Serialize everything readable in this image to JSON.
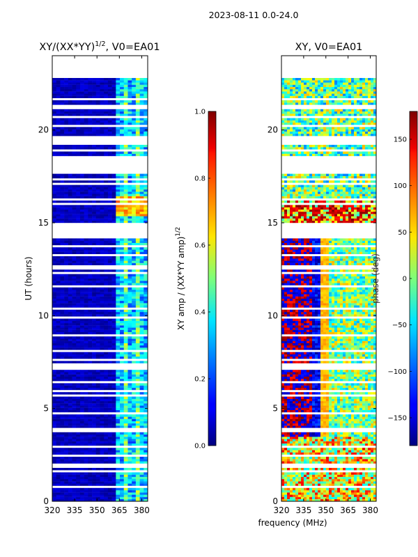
{
  "suptitle": "2023-08-11 0.0-24.0",
  "shared_xlabel": "frequency (MHz)",
  "chart_data": [
    {
      "type": "heatmap",
      "title": "XY/(XX*YY)^1/2, V0=EA01",
      "title_main": "XY/(XX*YY)",
      "title_sup": "1/2",
      "title_tail": ", V0=EA01",
      "xlabel": "frequency (MHz)",
      "ylabel": "UT (hours)",
      "xlim": [
        320,
        384
      ],
      "ylim": [
        0,
        24
      ],
      "xticks": [
        320,
        335,
        350,
        365,
        380
      ],
      "yticks": [
        0,
        5,
        10,
        15,
        20
      ],
      "colorbar": {
        "label": "XY amp / (XX*YY amp)^1/2",
        "label_main": "XY amp / (XX*YY amp)",
        "label_sup": "1/2",
        "range": [
          0.0,
          1.0
        ],
        "ticks": [
          "0.0",
          "0.2",
          "0.4",
          "0.6",
          "0.8",
          "1.0"
        ],
        "colormap": "jet"
      }
    },
    {
      "type": "heatmap",
      "title": "XY, V0=EA01",
      "xlabel": "frequency (MHz)",
      "ylabel": "phase (deg)",
      "xlim": [
        320,
        384
      ],
      "ylim": [
        0,
        24
      ],
      "xticks": [
        320,
        335,
        350,
        365,
        380
      ],
      "yticks": [
        0,
        5,
        10,
        15,
        20
      ],
      "colorbar": {
        "label": "phase (deg)",
        "range": [
          -180,
          180
        ],
        "ticks": [
          "150",
          "100",
          "50",
          "0",
          "−50",
          "−100",
          "−150"
        ],
        "colormap": "jet"
      }
    }
  ]
}
